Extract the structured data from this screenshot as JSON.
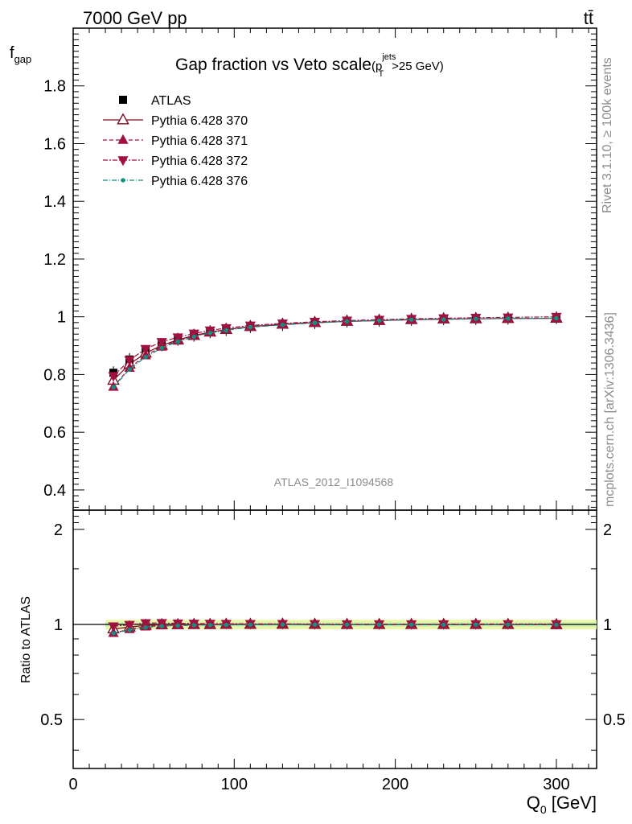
{
  "header": {
    "left_label": "7000 GeV pp",
    "right_label": "tt̄"
  },
  "side_labels": {
    "rivet": "Rivet 3.1.10, ≥ 100k events",
    "mcplots": "mcplots.cern.ch [arXiv:1306.3436]"
  },
  "chart_data": {
    "type": "line",
    "title": "Gap fraction vs Veto scale",
    "title_cut": "(p",
    "title_cut_sup": "jets",
    "title_cut_sub": "T",
    "title_cut_tail": ">25 GeV)",
    "ylabel": "f",
    "ylabel_sub": "gap",
    "xlabel": "Q",
    "xlabel_sub": "0",
    "xlabel_unit": " [GeV]",
    "ratio_ylabel": "Ratio to ATLAS",
    "watermark": "ATLAS_2012_I1094568",
    "xlim": [
      0,
      325
    ],
    "ylim": [
      0.33,
      2.0
    ],
    "ratio_ylim": [
      0.35,
      2.3
    ],
    "ratio_log": true,
    "x_ticks": [
      "0",
      "100",
      "200",
      "300"
    ],
    "y_ticks": [
      "0.4",
      "0.6",
      "0.8",
      "1",
      "1.2",
      "1.4",
      "1.6",
      "1.8"
    ],
    "ratio_ticks": [
      "0.5",
      "1",
      "2"
    ],
    "legend_position": "top-left",
    "x": [
      25,
      35,
      45,
      55,
      65,
      75,
      85,
      95,
      110,
      130,
      150,
      170,
      190,
      210,
      230,
      250,
      270,
      300
    ],
    "series": [
      {
        "name": "ATLAS",
        "color": "#000000",
        "marker": "square",
        "values": [
          0.806,
          0.852,
          0.88,
          0.903,
          0.922,
          0.936,
          0.948,
          0.956,
          0.966,
          0.973,
          0.98,
          0.985,
          0.988,
          0.991,
          0.993,
          0.994,
          0.995,
          0.997
        ]
      },
      {
        "name": "Pythia 6.428 370",
        "color": "#7a0c1e",
        "marker": "open-triangle-up",
        "dash": "",
        "values": [
          0.78,
          0.836,
          0.874,
          0.901,
          0.92,
          0.935,
          0.947,
          0.956,
          0.966,
          0.974,
          0.98,
          0.984,
          0.987,
          0.99,
          0.992,
          0.993,
          0.994,
          0.995
        ]
      },
      {
        "name": "Pythia 6.428 371",
        "color": "#a01040",
        "marker": "triangle-up",
        "dash": "5,3",
        "values": [
          0.757,
          0.823,
          0.866,
          0.896,
          0.917,
          0.933,
          0.946,
          0.955,
          0.965,
          0.973,
          0.979,
          0.984,
          0.987,
          0.99,
          0.991,
          0.993,
          0.994,
          0.995
        ]
      },
      {
        "name": "Pythia 6.428 372",
        "color": "#a01040",
        "marker": "triangle-down",
        "dash": "6,2,2,2",
        "values": [
          0.795,
          0.85,
          0.889,
          0.913,
          0.929,
          0.942,
          0.953,
          0.961,
          0.97,
          0.977,
          0.983,
          0.987,
          0.99,
          0.993,
          0.995,
          0.997,
          0.998,
          1.0
        ]
      },
      {
        "name": "Pythia 6.428 376",
        "color": "#109080",
        "marker": "dot",
        "dash": "6,2,1,2",
        "values": [
          0.756,
          0.818,
          0.861,
          0.892,
          0.914,
          0.931,
          0.944,
          0.953,
          0.964,
          0.972,
          0.979,
          0.984,
          0.987,
          0.99,
          0.991,
          0.993,
          0.994,
          0.995
        ]
      }
    ]
  }
}
